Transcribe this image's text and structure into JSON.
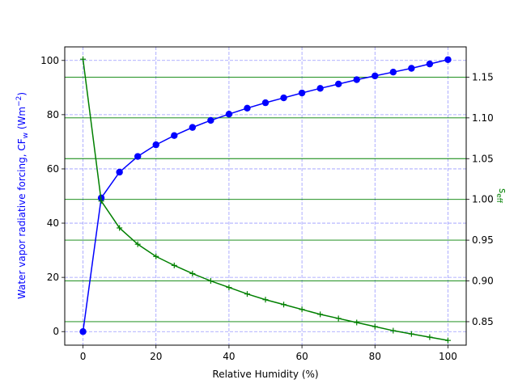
{
  "chart_data": {
    "type": "line",
    "xlabel": "Relative Humidity (%)",
    "ylabel": "Water vapor radiative forcing, CF",
    "ylabel_sub": "w",
    "ylabel_unit_open": " (Wm",
    "ylabel_unit_sup": "−2",
    "ylabel_unit_close": ")",
    "y2label": "s",
    "y2label_sub": "eff",
    "xlim": [
      -5,
      105
    ],
    "ylim": [
      -5,
      105
    ],
    "y2lim": [
      0.8212,
      1.1871
    ],
    "x_ticks": [
      0,
      20,
      40,
      60,
      80,
      100
    ],
    "y_ticks": [
      0,
      20,
      40,
      60,
      80,
      100
    ],
    "y2_ticks": [
      0.85,
      0.9,
      0.95,
      1.0,
      1.05,
      1.1,
      1.15
    ],
    "x_tick_labels": [
      "0",
      "20",
      "40",
      "60",
      "80",
      "100"
    ],
    "y_tick_labels": [
      "0",
      "20",
      "40",
      "60",
      "80",
      "100"
    ],
    "y2_tick_labels": [
      "0.85",
      "0.90",
      "0.95",
      "1.00",
      "1.05",
      "1.10",
      "1.15"
    ],
    "grid": {
      "left_axis": "dashed blue",
      "right_axis": "solid green"
    },
    "x": [
      0,
      5,
      10,
      15,
      20,
      25,
      30,
      35,
      40,
      45,
      50,
      55,
      60,
      65,
      70,
      75,
      80,
      85,
      90,
      95,
      100
    ],
    "series": [
      {
        "axis": "left",
        "color": "#0000ff",
        "marker": "circle",
        "values": [
          0,
          49.3,
          58.8,
          64.6,
          68.9,
          72.3,
          75.3,
          77.9,
          80.2,
          82.4,
          84.4,
          86.2,
          88.0,
          89.7,
          91.3,
          92.9,
          94.3,
          95.7,
          97.1,
          98.7,
          100.3
        ]
      },
      {
        "axis": "right",
        "color": "#008000",
        "marker": "plus",
        "values": [
          1.172,
          0.998,
          0.965,
          0.945,
          0.93,
          0.919,
          0.909,
          0.9,
          0.892,
          0.884,
          0.877,
          0.871,
          0.865,
          0.859,
          0.854,
          0.849,
          0.844,
          0.839,
          0.835,
          0.831,
          0.827
        ]
      }
    ]
  }
}
